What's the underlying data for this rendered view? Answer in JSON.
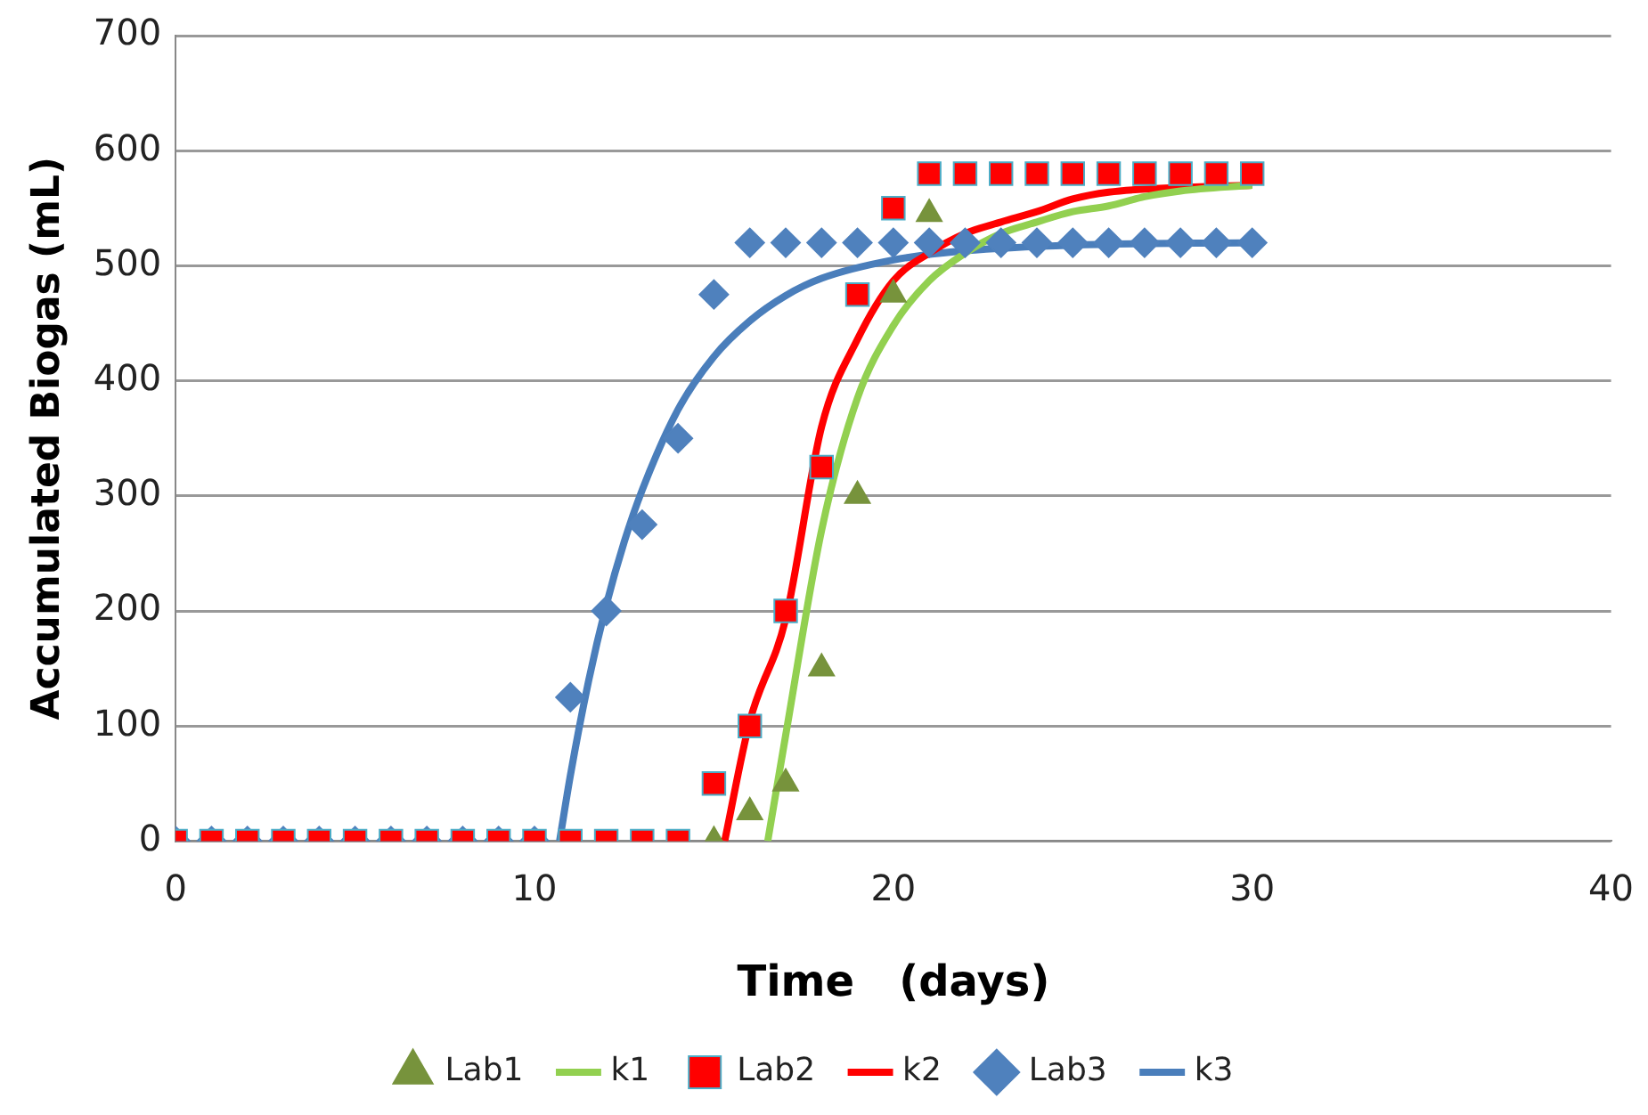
{
  "chart_data": {
    "type": "scatter",
    "xlabel": "Time   (days)",
    "ylabel": "Accumulated Biogas (mL)",
    "xlim": [
      0,
      40
    ],
    "xticks": [
      0,
      10,
      20,
      30,
      40
    ],
    "ylim": [
      0,
      700
    ],
    "yticks": [
      0,
      100,
      200,
      300,
      400,
      500,
      600,
      700
    ],
    "grid": "y",
    "legend": "bottom",
    "series": [
      {
        "name": "Lab1",
        "marker": "triangle",
        "color": "#77933c",
        "x": [
          15,
          16,
          17,
          18,
          19,
          20,
          21
        ],
        "values": [
          0,
          25,
          50,
          150,
          300,
          475,
          545
        ]
      },
      {
        "name": "k1",
        "type": "line",
        "marker": "none",
        "color": "#92d050",
        "x": [
          16.5,
          17,
          18,
          19,
          20,
          21,
          22,
          23,
          24,
          25,
          26,
          27,
          28,
          30
        ],
        "values": [
          0,
          92,
          270,
          385,
          448,
          487,
          511,
          528,
          538,
          547,
          552,
          560,
          565,
          570
        ]
      },
      {
        "name": "Lab2",
        "marker": "square",
        "color": "#ff0000",
        "x": [
          0,
          1,
          2,
          3,
          4,
          5,
          6,
          7,
          8,
          9,
          10,
          11,
          12,
          13,
          14,
          15,
          16,
          17,
          18,
          19,
          20,
          21,
          22,
          23,
          24,
          25,
          26,
          27,
          28,
          29,
          30
        ],
        "values": [
          0,
          0,
          0,
          0,
          0,
          0,
          0,
          0,
          0,
          0,
          0,
          0,
          0,
          0,
          0,
          50,
          100,
          200,
          325,
          475,
          550,
          580,
          580,
          580,
          580,
          580,
          580,
          580,
          580,
          580,
          580
        ]
      },
      {
        "name": "k2",
        "type": "line",
        "marker": "none",
        "color": "#ff0000",
        "x": [
          15.3,
          16,
          17,
          18,
          19,
          20,
          21,
          22,
          23,
          24,
          25,
          26,
          28,
          30
        ],
        "values": [
          0,
          104,
          193,
          360,
          436,
          487,
          511,
          528,
          538,
          547,
          558,
          564,
          568,
          570
        ]
      },
      {
        "name": "Lab3",
        "marker": "diamond",
        "color": "#4f81bd",
        "x": [
          0,
          1,
          2,
          3,
          4,
          5,
          6,
          7,
          8,
          9,
          10,
          11,
          12,
          13,
          14,
          15,
          16,
          17,
          18,
          19,
          20,
          21,
          22,
          23,
          24,
          25,
          26,
          27,
          28,
          29,
          30
        ],
        "values": [
          0,
          0,
          0,
          0,
          0,
          0,
          0,
          0,
          0,
          0,
          0,
          125,
          200,
          275,
          350,
          475,
          520,
          520,
          520,
          520,
          520,
          520,
          520,
          520,
          520,
          520,
          520,
          520,
          520,
          520,
          520
        ]
      },
      {
        "name": "k3",
        "type": "line",
        "marker": "none",
        "color": "#4a7ebb",
        "x": [
          10.7,
          11,
          11.5,
          12,
          12.5,
          13,
          14,
          15,
          16,
          17,
          18,
          20,
          22,
          25,
          30
        ],
        "values": [
          0,
          57,
          138,
          205,
          260,
          305,
          375,
          421,
          452,
          474,
          489,
          505,
          513,
          518,
          520
        ]
      }
    ]
  }
}
